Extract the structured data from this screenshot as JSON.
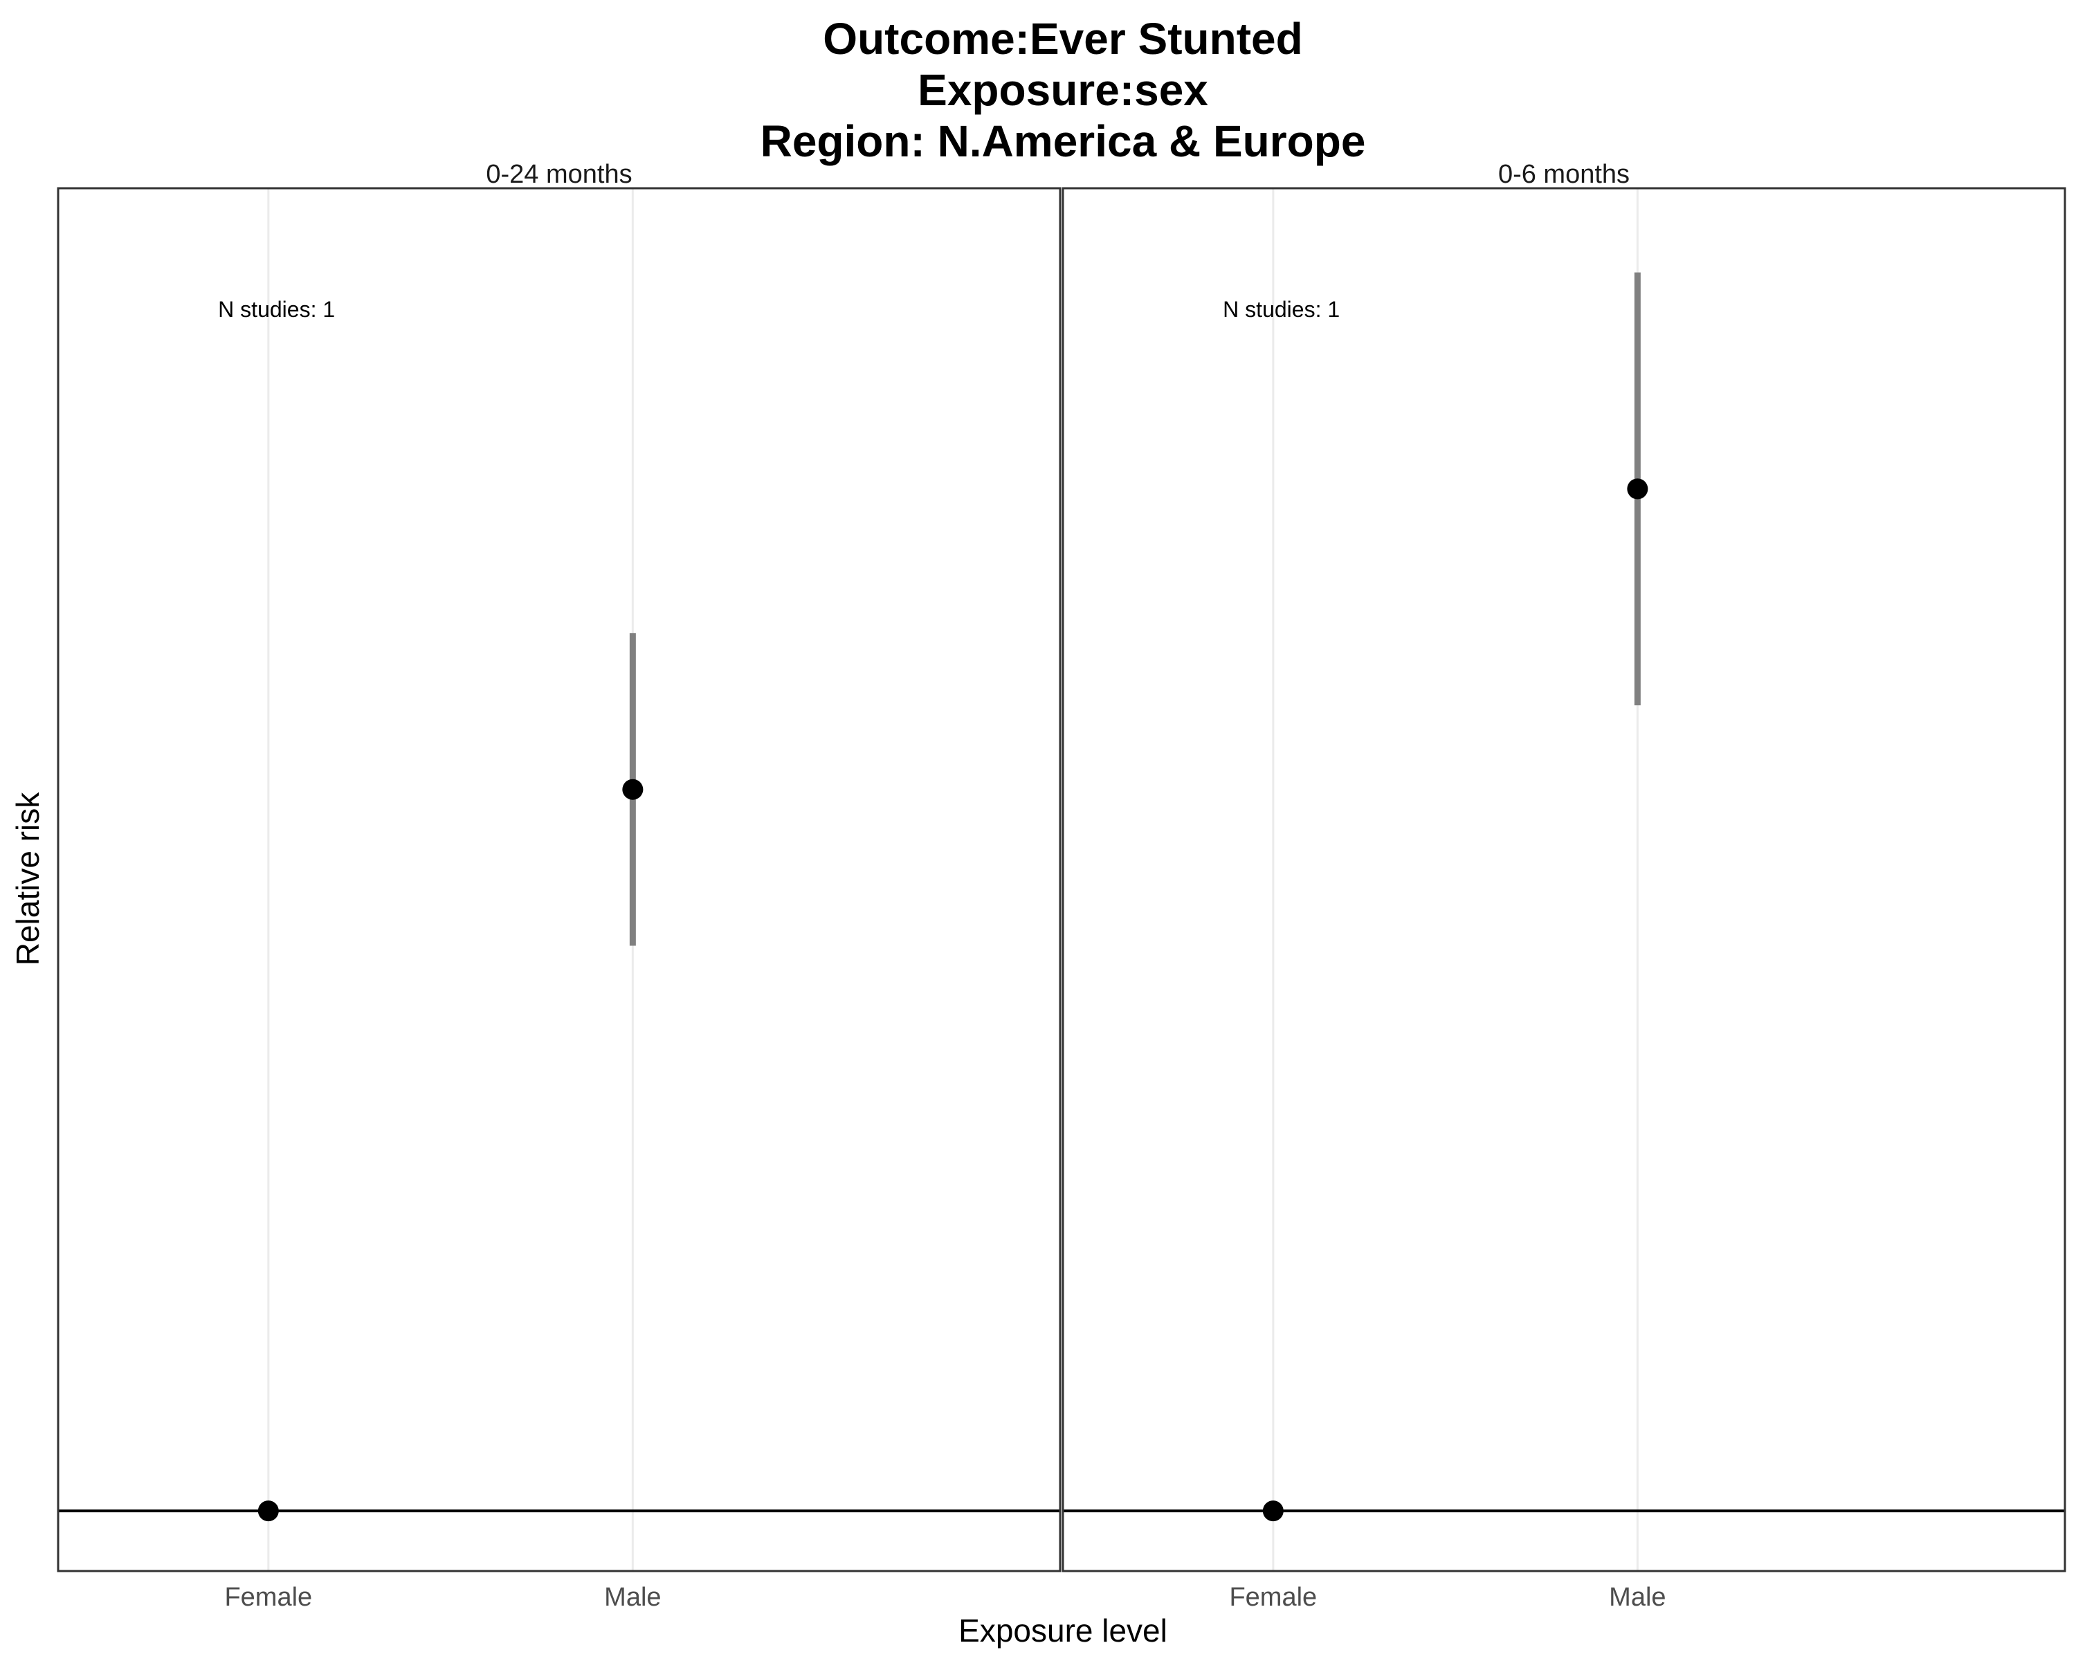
{
  "chart_data": {
    "type": "scatter",
    "title_lines": [
      "Outcome:Ever Stunted",
      "Exposure:sex",
      "Region: N.America & Europe"
    ],
    "xlabel": "Exposure level",
    "ylabel": "Relative risk",
    "categories": [
      "Female",
      "Male"
    ],
    "reference_y": 1.0,
    "ylim": [
      0.95,
      2.1
    ],
    "grid": true,
    "panels": [
      {
        "label": "0-24 months",
        "annotation": "N studies: 1",
        "points": [
          {
            "x": "Female",
            "y": 1.0,
            "ci": null
          },
          {
            "x": "Male",
            "y": 1.6,
            "ci": [
              1.47,
              1.73
            ]
          }
        ]
      },
      {
        "label": "0-6 months",
        "annotation": "N studies: 1",
        "points": [
          {
            "x": "Female",
            "y": 1.0,
            "ci": null
          },
          {
            "x": "Male",
            "y": 1.85,
            "ci": [
              1.67,
              2.03
            ]
          }
        ]
      }
    ],
    "colors": {
      "point": "#000000",
      "ci": "#808080",
      "grid": "#ebebeb",
      "border": "#333333"
    }
  }
}
